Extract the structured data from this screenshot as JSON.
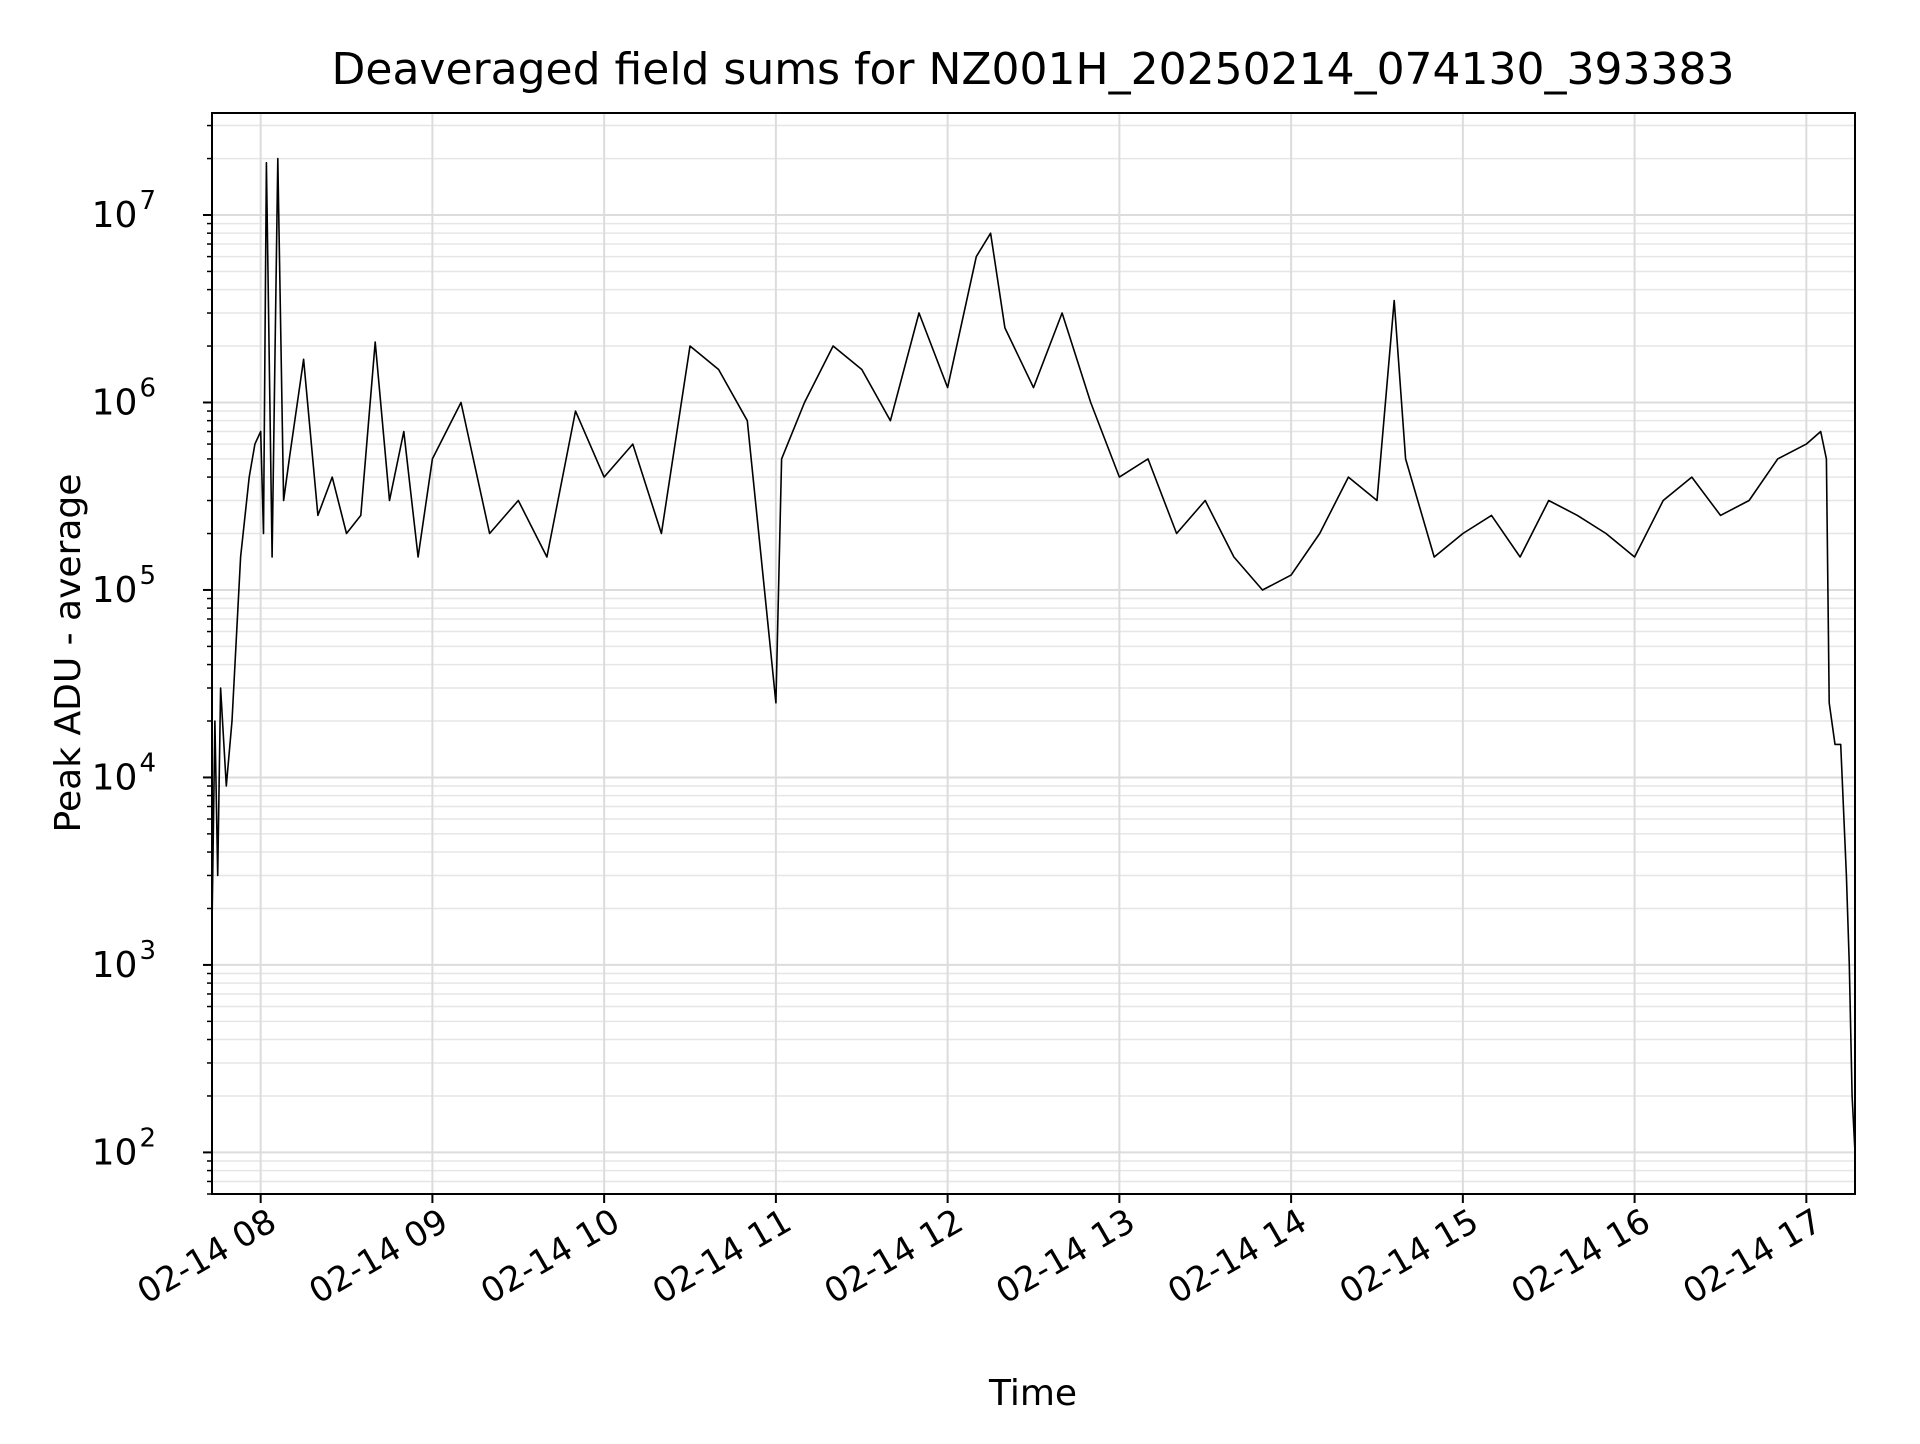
{
  "chart_data": {
    "type": "line",
    "title": "Deaveraged field sums for NZ001H_20250214_074130_393383",
    "xlabel": "Time",
    "ylabel": "Peak ADU - average",
    "yscale": "log",
    "xlim": [
      "2025-02-14T07:43",
      "2025-02-14T17:17"
    ],
    "ylim": [
      60,
      35000000
    ],
    "grid": true,
    "line_color": "#000000",
    "x_ticks": [
      {
        "label": "02-14 08",
        "time": "2025-02-14T08:00"
      },
      {
        "label": "02-14 09",
        "time": "2025-02-14T09:00"
      },
      {
        "label": "02-14 10",
        "time": "2025-02-14T10:00"
      },
      {
        "label": "02-14 11",
        "time": "2025-02-14T11:00"
      },
      {
        "label": "02-14 12",
        "time": "2025-02-14T12:00"
      },
      {
        "label": "02-14 13",
        "time": "2025-02-14T13:00"
      },
      {
        "label": "02-14 14",
        "time": "2025-02-14T14:00"
      },
      {
        "label": "02-14 15",
        "time": "2025-02-14T15:00"
      },
      {
        "label": "02-14 16",
        "time": "2025-02-14T16:00"
      },
      {
        "label": "02-14 17",
        "time": "2025-02-14T17:00"
      }
    ],
    "y_ticks": [
      {
        "base": "10",
        "exp": "2",
        "value": 100
      },
      {
        "base": "10",
        "exp": "3",
        "value": 1000
      },
      {
        "base": "10",
        "exp": "4",
        "value": 10000
      },
      {
        "base": "10",
        "exp": "5",
        "value": 100000
      },
      {
        "base": "10",
        "exp": "6",
        "value": 1000000
      },
      {
        "base": "10",
        "exp": "7",
        "value": 10000000
      }
    ],
    "series": [
      {
        "x": [
          "2025-02-14T07:43",
          "2025-02-14T07:44",
          "2025-02-14T07:45",
          "2025-02-14T07:46",
          "2025-02-14T07:48",
          "2025-02-14T07:50",
          "2025-02-14T07:53",
          "2025-02-14T07:56",
          "2025-02-14T07:58",
          "2025-02-14T08:00",
          "2025-02-14T08:01",
          "2025-02-14T08:02",
          "2025-02-14T08:04",
          "2025-02-14T08:06",
          "2025-02-14T08:08",
          "2025-02-14T08:10",
          "2025-02-14T08:15",
          "2025-02-14T08:20",
          "2025-02-14T08:25",
          "2025-02-14T08:30",
          "2025-02-14T08:35",
          "2025-02-14T08:40",
          "2025-02-14T08:45",
          "2025-02-14T08:50",
          "2025-02-14T08:55",
          "2025-02-14T09:00",
          "2025-02-14T09:10",
          "2025-02-14T09:20",
          "2025-02-14T09:30",
          "2025-02-14T09:40",
          "2025-02-14T09:50",
          "2025-02-14T10:00",
          "2025-02-14T10:10",
          "2025-02-14T10:20",
          "2025-02-14T10:30",
          "2025-02-14T10:40",
          "2025-02-14T10:50",
          "2025-02-14T10:58",
          "2025-02-14T11:00",
          "2025-02-14T11:02",
          "2025-02-14T11:10",
          "2025-02-14T11:20",
          "2025-02-14T11:30",
          "2025-02-14T11:40",
          "2025-02-14T11:50",
          "2025-02-14T12:00",
          "2025-02-14T12:10",
          "2025-02-14T12:15",
          "2025-02-14T12:20",
          "2025-02-14T12:30",
          "2025-02-14T12:40",
          "2025-02-14T12:50",
          "2025-02-14T13:00",
          "2025-02-14T13:10",
          "2025-02-14T13:20",
          "2025-02-14T13:30",
          "2025-02-14T13:40",
          "2025-02-14T13:50",
          "2025-02-14T14:00",
          "2025-02-14T14:10",
          "2025-02-14T14:20",
          "2025-02-14T14:30",
          "2025-02-14T14:36",
          "2025-02-14T14:40",
          "2025-02-14T14:50",
          "2025-02-14T15:00",
          "2025-02-14T15:10",
          "2025-02-14T15:20",
          "2025-02-14T15:30",
          "2025-02-14T15:40",
          "2025-02-14T15:50",
          "2025-02-14T16:00",
          "2025-02-14T16:10",
          "2025-02-14T16:20",
          "2025-02-14T16:30",
          "2025-02-14T16:40",
          "2025-02-14T16:50",
          "2025-02-14T17:00",
          "2025-02-14T17:05",
          "2025-02-14T17:07",
          "2025-02-14T17:08",
          "2025-02-14T17:10",
          "2025-02-14T17:12",
          "2025-02-14T17:14",
          "2025-02-14T17:15",
          "2025-02-14T17:16",
          "2025-02-14T17:17"
        ],
        "y": [
          1600,
          20000,
          3000,
          30000,
          9000,
          20000,
          150000,
          400000,
          600000,
          700000,
          200000,
          19000000,
          150000,
          20000000,
          300000,
          500000,
          1700000,
          250000,
          400000,
          200000,
          250000,
          2100000,
          300000,
          700000,
          150000,
          500000,
          1000000,
          200000,
          300000,
          150000,
          900000,
          400000,
          600000,
          200000,
          2000000,
          1500000,
          800000,
          50000,
          25000,
          500000,
          1000000,
          2000000,
          1500000,
          800000,
          3000000,
          1200000,
          6000000,
          8000000,
          2500000,
          1200000,
          3000000,
          1000000,
          400000,
          500000,
          200000,
          300000,
          150000,
          100000,
          120000,
          200000,
          400000,
          300000,
          3500000,
          500000,
          150000,
          200000,
          250000,
          150000,
          300000,
          250000,
          200000,
          150000,
          300000,
          400000,
          250000,
          300000,
          500000,
          600000,
          700000,
          500000,
          25000,
          15000,
          15000,
          3000,
          1000,
          200,
          100
        ]
      }
    ]
  }
}
